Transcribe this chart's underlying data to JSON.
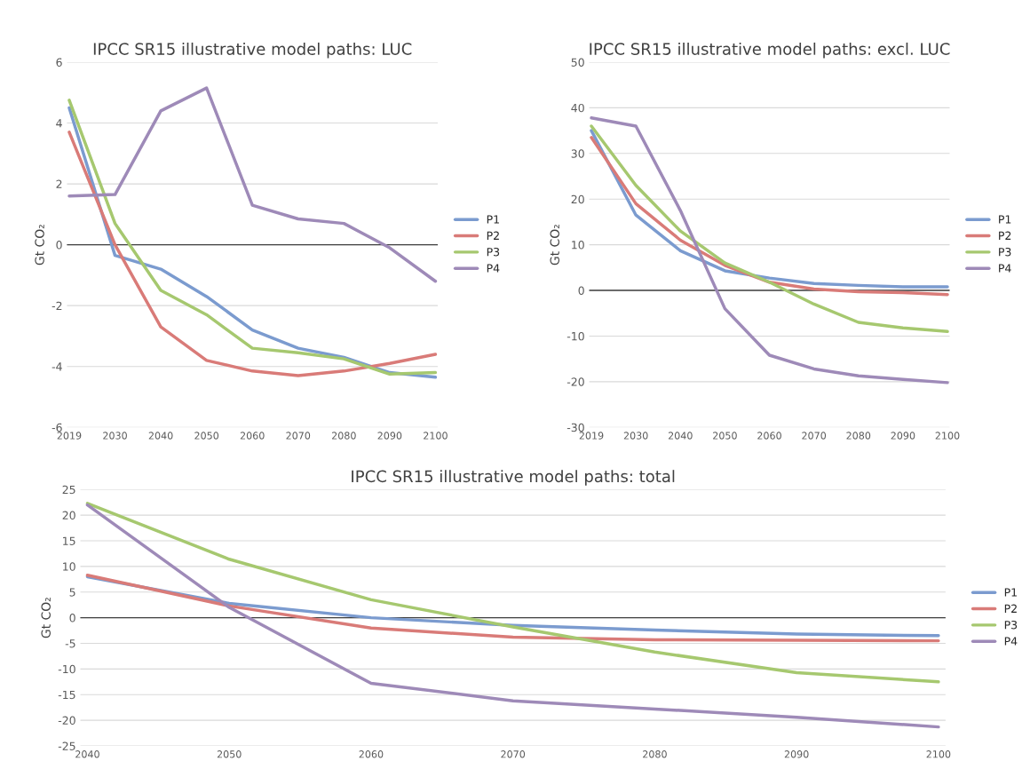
{
  "chart_data": [
    {
      "type": "line",
      "title": "IPCC SR15 illustrative model paths: LUC",
      "ylabel": "Gt CO₂",
      "categories": [
        "2019",
        "2030",
        "2040",
        "2050",
        "2060",
        "2070",
        "2080",
        "2090",
        "2100"
      ],
      "ylim": [
        -6,
        6
      ],
      "yticks": [
        -6,
        -4,
        -2,
        0,
        2,
        4,
        6
      ],
      "grid": "y",
      "legend": "right",
      "series": [
        {
          "name": "P1",
          "color": "#7b9bcf",
          "values": [
            4.5,
            -0.35,
            -0.8,
            -1.7,
            -2.8,
            -3.4,
            -3.7,
            -4.2,
            -4.35
          ]
        },
        {
          "name": "P2",
          "color": "#d97b78",
          "values": [
            3.7,
            0,
            -2.7,
            -3.8,
            -4.15,
            -4.3,
            -4.15,
            -3.9,
            -3.6
          ]
        },
        {
          "name": "P3",
          "color": "#a6c86f",
          "values": [
            4.75,
            0.7,
            -1.5,
            -2.3,
            -3.4,
            -3.55,
            -3.75,
            -4.25,
            -4.2
          ]
        },
        {
          "name": "P4",
          "color": "#9e8ab8",
          "values": [
            1.6,
            1.65,
            4.4,
            5.15,
            1.3,
            0.85,
            0.7,
            -0.1,
            -1.2
          ]
        }
      ]
    },
    {
      "type": "line",
      "title": "IPCC SR15 illustrative model paths: excl. LUC",
      "ylabel": "Gt CO₂",
      "categories": [
        "2019",
        "2030",
        "2040",
        "2050",
        "2060",
        "2070",
        "2080",
        "2090",
        "2100"
      ],
      "ylim": [
        -30,
        50
      ],
      "yticks": [
        -30,
        -20,
        -10,
        0,
        10,
        20,
        30,
        40,
        50
      ],
      "grid": "y",
      "legend": "right",
      "series": [
        {
          "name": "P1",
          "color": "#7b9bcf",
          "values": [
            35,
            16.5,
            8.7,
            4.3,
            2.7,
            1.5,
            1.1,
            0.8,
            0.8
          ]
        },
        {
          "name": "P2",
          "color": "#d97b78",
          "values": [
            33.5,
            19,
            11,
            5.5,
            1.8,
            0.3,
            -0.3,
            -0.5,
            -0.9
          ]
        },
        {
          "name": "P3",
          "color": "#a6c86f",
          "values": [
            36,
            23,
            13,
            6,
            1.8,
            -3,
            -7,
            -8.2,
            -9
          ]
        },
        {
          "name": "P4",
          "color": "#9e8ab8",
          "values": [
            37.8,
            36,
            17.5,
            -4,
            -14.2,
            -17.2,
            -18.7,
            -19.5,
            -20.2
          ]
        }
      ]
    },
    {
      "type": "line",
      "title": "IPCC SR15 illustrative model paths: total",
      "ylabel": "Gt CO₂",
      "categories": [
        "2040",
        "2050",
        "2060",
        "2070",
        "2080",
        "2090",
        "2100"
      ],
      "ylim": [
        -25,
        25
      ],
      "yticks": [
        -25,
        -20,
        -15,
        -10,
        -5,
        0,
        5,
        10,
        15,
        20,
        25
      ],
      "grid": "y",
      "legend": "right",
      "series": [
        {
          "name": "P1",
          "color": "#7b9bcf",
          "values": [
            8,
            2.8,
            0,
            -1.5,
            -2.4,
            -3.2,
            -3.5
          ]
        },
        {
          "name": "P2",
          "color": "#d97b78",
          "values": [
            8.3,
            2.3,
            -2,
            -3.8,
            -4.3,
            -4.4,
            -4.5
          ]
        },
        {
          "name": "P3",
          "color": "#a6c86f",
          "values": [
            22.3,
            11.4,
            3.5,
            -1.8,
            -6.7,
            -10.7,
            -12.5
          ]
        },
        {
          "name": "P4",
          "color": "#9e8ab8",
          "values": [
            22,
            2,
            -12.8,
            -16.2,
            -17.8,
            -19.4,
            -21.3
          ]
        }
      ]
    }
  ]
}
